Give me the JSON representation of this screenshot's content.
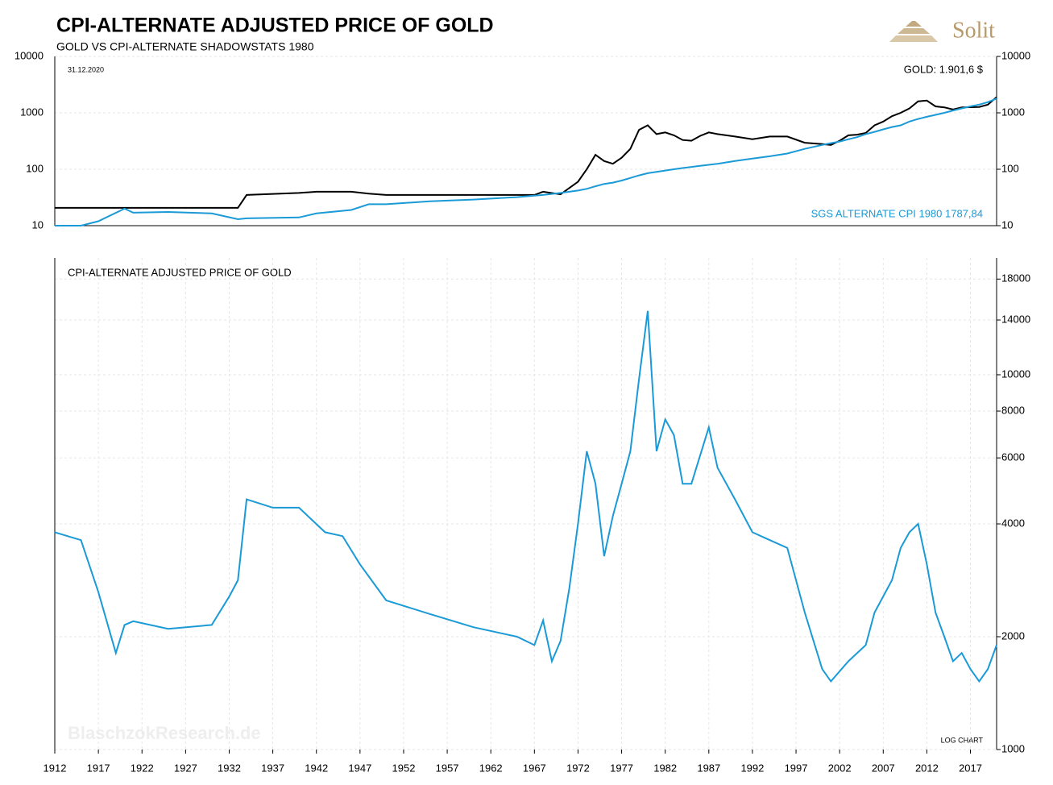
{
  "header": {
    "title": "CPI-ALTERNATE ADJUSTED PRICE OF GOLD",
    "subtitle": "GOLD VS CPI-ALTERNATE SHADOWSTATS 1980",
    "logo": "Solit"
  },
  "chart_data": [
    {
      "type": "line",
      "date_label": "31.12.2020",
      "log_scale": true,
      "grid": true,
      "x": [
        1912,
        1915,
        1917,
        1920,
        1921,
        1925,
        1930,
        1933,
        1934,
        1940,
        1942,
        1946,
        1948,
        1950,
        1955,
        1960,
        1965,
        1967,
        1968,
        1970,
        1972,
        1973,
        1974,
        1975,
        1976,
        1977,
        1978,
        1979,
        1980,
        1981,
        1982,
        1983,
        1984,
        1985,
        1986,
        1987,
        1988,
        1990,
        1992,
        1994,
        1996,
        1998,
        2000,
        2001,
        2002,
        2003,
        2004,
        2005,
        2006,
        2007,
        2008,
        2009,
        2010,
        2011,
        2012,
        2013,
        2014,
        2015,
        2016,
        2017,
        2018,
        2019,
        2020
      ],
      "series": [
        {
          "name": "GOLD: 1.901,6 $",
          "color": "#000000",
          "values": [
            20.67,
            20.67,
            20.67,
            20.67,
            20.67,
            20.67,
            20.67,
            20.67,
            35,
            38,
            40,
            40,
            37,
            35,
            35,
            35,
            35,
            35,
            40,
            36,
            60,
            100,
            180,
            140,
            125,
            160,
            230,
            500,
            600,
            420,
            450,
            400,
            330,
            320,
            390,
            450,
            420,
            380,
            340,
            380,
            380,
            295,
            280,
            270,
            320,
            400,
            410,
            440,
            600,
            700,
            870,
            1000,
            1200,
            1600,
            1650,
            1300,
            1250,
            1150,
            1250,
            1260,
            1270,
            1400,
            1900
          ]
        },
        {
          "name": "SGS ALTERNATE CPI 1980 1787,84",
          "color": "#1a9ad6",
          "values": [
            10,
            10,
            12,
            20,
            17,
            17.5,
            16.5,
            13,
            13.5,
            14,
            16.5,
            19,
            24,
            24,
            27,
            29,
            32,
            34,
            35,
            38,
            42,
            45,
            50,
            55,
            58,
            63,
            70,
            78,
            85,
            90,
            95,
            100,
            105,
            110,
            115,
            120,
            125,
            140,
            155,
            170,
            190,
            230,
            270,
            290,
            310,
            340,
            370,
            420,
            460,
            510,
            560,
            600,
            700,
            780,
            850,
            920,
            1000,
            1100,
            1200,
            1300,
            1400,
            1550,
            1788
          ]
        }
      ],
      "xlim": [
        1912,
        2020
      ],
      "ylim": [
        10,
        10000
      ],
      "yticks": [
        10,
        100,
        1000,
        10000
      ]
    },
    {
      "type": "line",
      "title": "CPI-ALTERNATE ADJUSTED PRICE OF GOLD",
      "annotation": "LOG CHART",
      "watermark": "BlaschzokResearch.de",
      "log_scale": true,
      "grid": true,
      "x": [
        1912,
        1915,
        1917,
        1919,
        1920,
        1921,
        1925,
        1930,
        1932,
        1933,
        1934,
        1937,
        1940,
        1943,
        1945,
        1947,
        1950,
        1955,
        1960,
        1965,
        1967,
        1968,
        1969,
        1970,
        1971,
        1972,
        1973,
        1974,
        1975,
        1976,
        1977,
        1978,
        1979,
        1980,
        1981,
        1982,
        1983,
        1984,
        1985,
        1987,
        1988,
        1990,
        1992,
        1994,
        1996,
        1998,
        2000,
        2001,
        2003,
        2005,
        2006,
        2008,
        2009,
        2010,
        2011,
        2012,
        2013,
        2014,
        2015,
        2016,
        2017,
        2018,
        2019,
        2020
      ],
      "series": [
        {
          "name": "CPI-ALTERNATE ADJUSTED PRICE OF GOLD",
          "color": "#1a9ad6",
          "values": [
            3800,
            3620,
            2630,
            1810,
            2150,
            2200,
            2100,
            2150,
            2560,
            2830,
            4650,
            4420,
            4420,
            3800,
            3710,
            3120,
            2500,
            2300,
            2120,
            2000,
            1900,
            2210,
            1720,
            1950,
            2690,
            4000,
            6250,
            5120,
            3280,
            4200,
            5120,
            6250,
            9750,
            14800,
            6250,
            7600,
            6900,
            5120,
            5120,
            7240,
            5650,
            4650,
            3800,
            3620,
            3450,
            2320,
            1640,
            1520,
            1720,
            1900,
            2320,
            2830,
            3450,
            3800,
            4000,
            3120,
            2320,
            2000,
            1720,
            1810,
            1640,
            1520,
            1640,
            1900
          ]
        }
      ],
      "xlim": [
        1912,
        2020
      ],
      "xticks": [
        1912,
        1917,
        1922,
        1927,
        1932,
        1937,
        1942,
        1947,
        1952,
        1957,
        1962,
        1967,
        1972,
        1977,
        1982,
        1987,
        1992,
        1997,
        2002,
        2007,
        2012,
        2017
      ],
      "ylim": [
        1000,
        20500
      ],
      "yticks": [
        1000,
        2000,
        4000,
        6000,
        8000,
        10000,
        14000,
        18000
      ]
    }
  ]
}
